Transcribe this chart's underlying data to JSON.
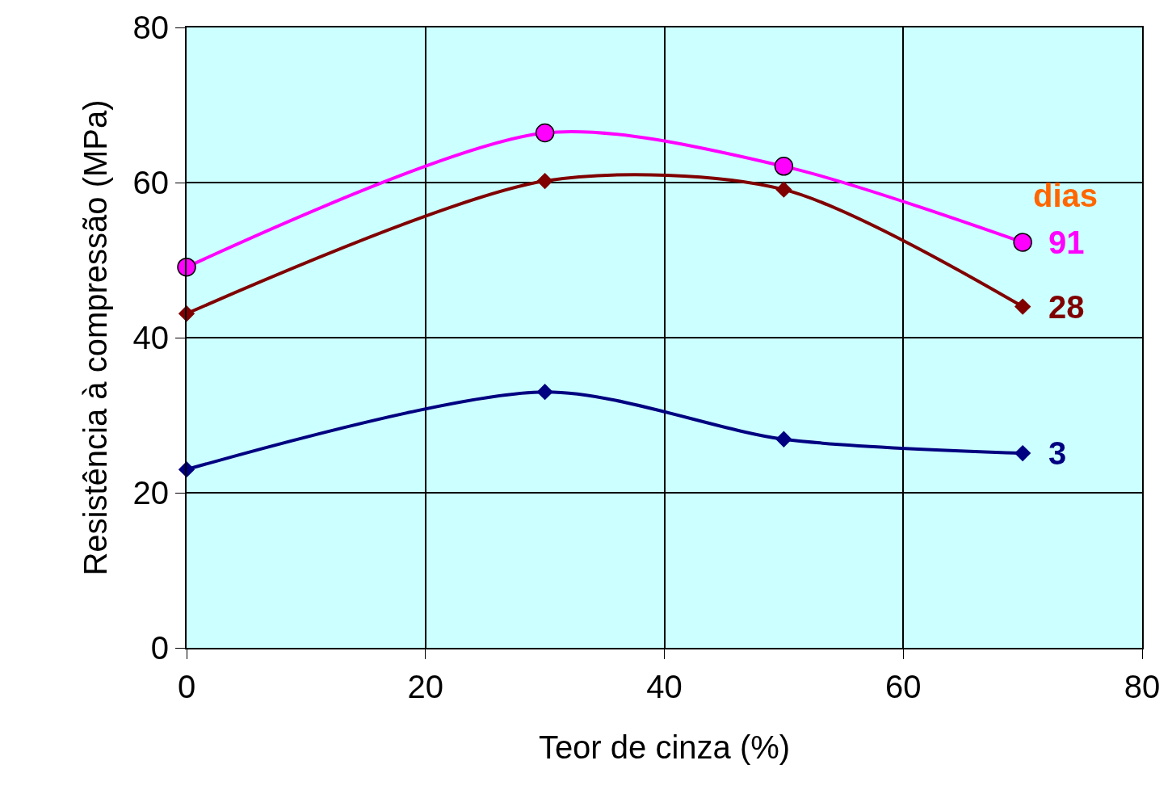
{
  "chart_data": {
    "type": "line",
    "xlabel": "Teor de cinza (%)",
    "ylabel": "Resistência à compressão (MPa)",
    "x": [
      0,
      30,
      50,
      70
    ],
    "series": [
      {
        "name": "91",
        "color": "#ff00ff",
        "marker": "circle",
        "values": [
          49.1,
          66.4,
          62.1,
          52.3
        ]
      },
      {
        "name": "28",
        "color": "#800000",
        "marker": "diamond",
        "values": [
          43.1,
          60.2,
          59.1,
          44.0
        ]
      },
      {
        "name": "3",
        "color": "#000080",
        "marker": "diamond",
        "values": [
          23.0,
          33.0,
          26.9,
          25.1
        ]
      }
    ],
    "annotations": [
      "dias"
    ],
    "xlim": [
      0,
      80
    ],
    "xticks": [
      0,
      20,
      40,
      60,
      80
    ],
    "ylim": [
      0,
      80
    ],
    "yticks": [
      0,
      20,
      40,
      60,
      80
    ],
    "grid": true,
    "legend": false
  }
}
